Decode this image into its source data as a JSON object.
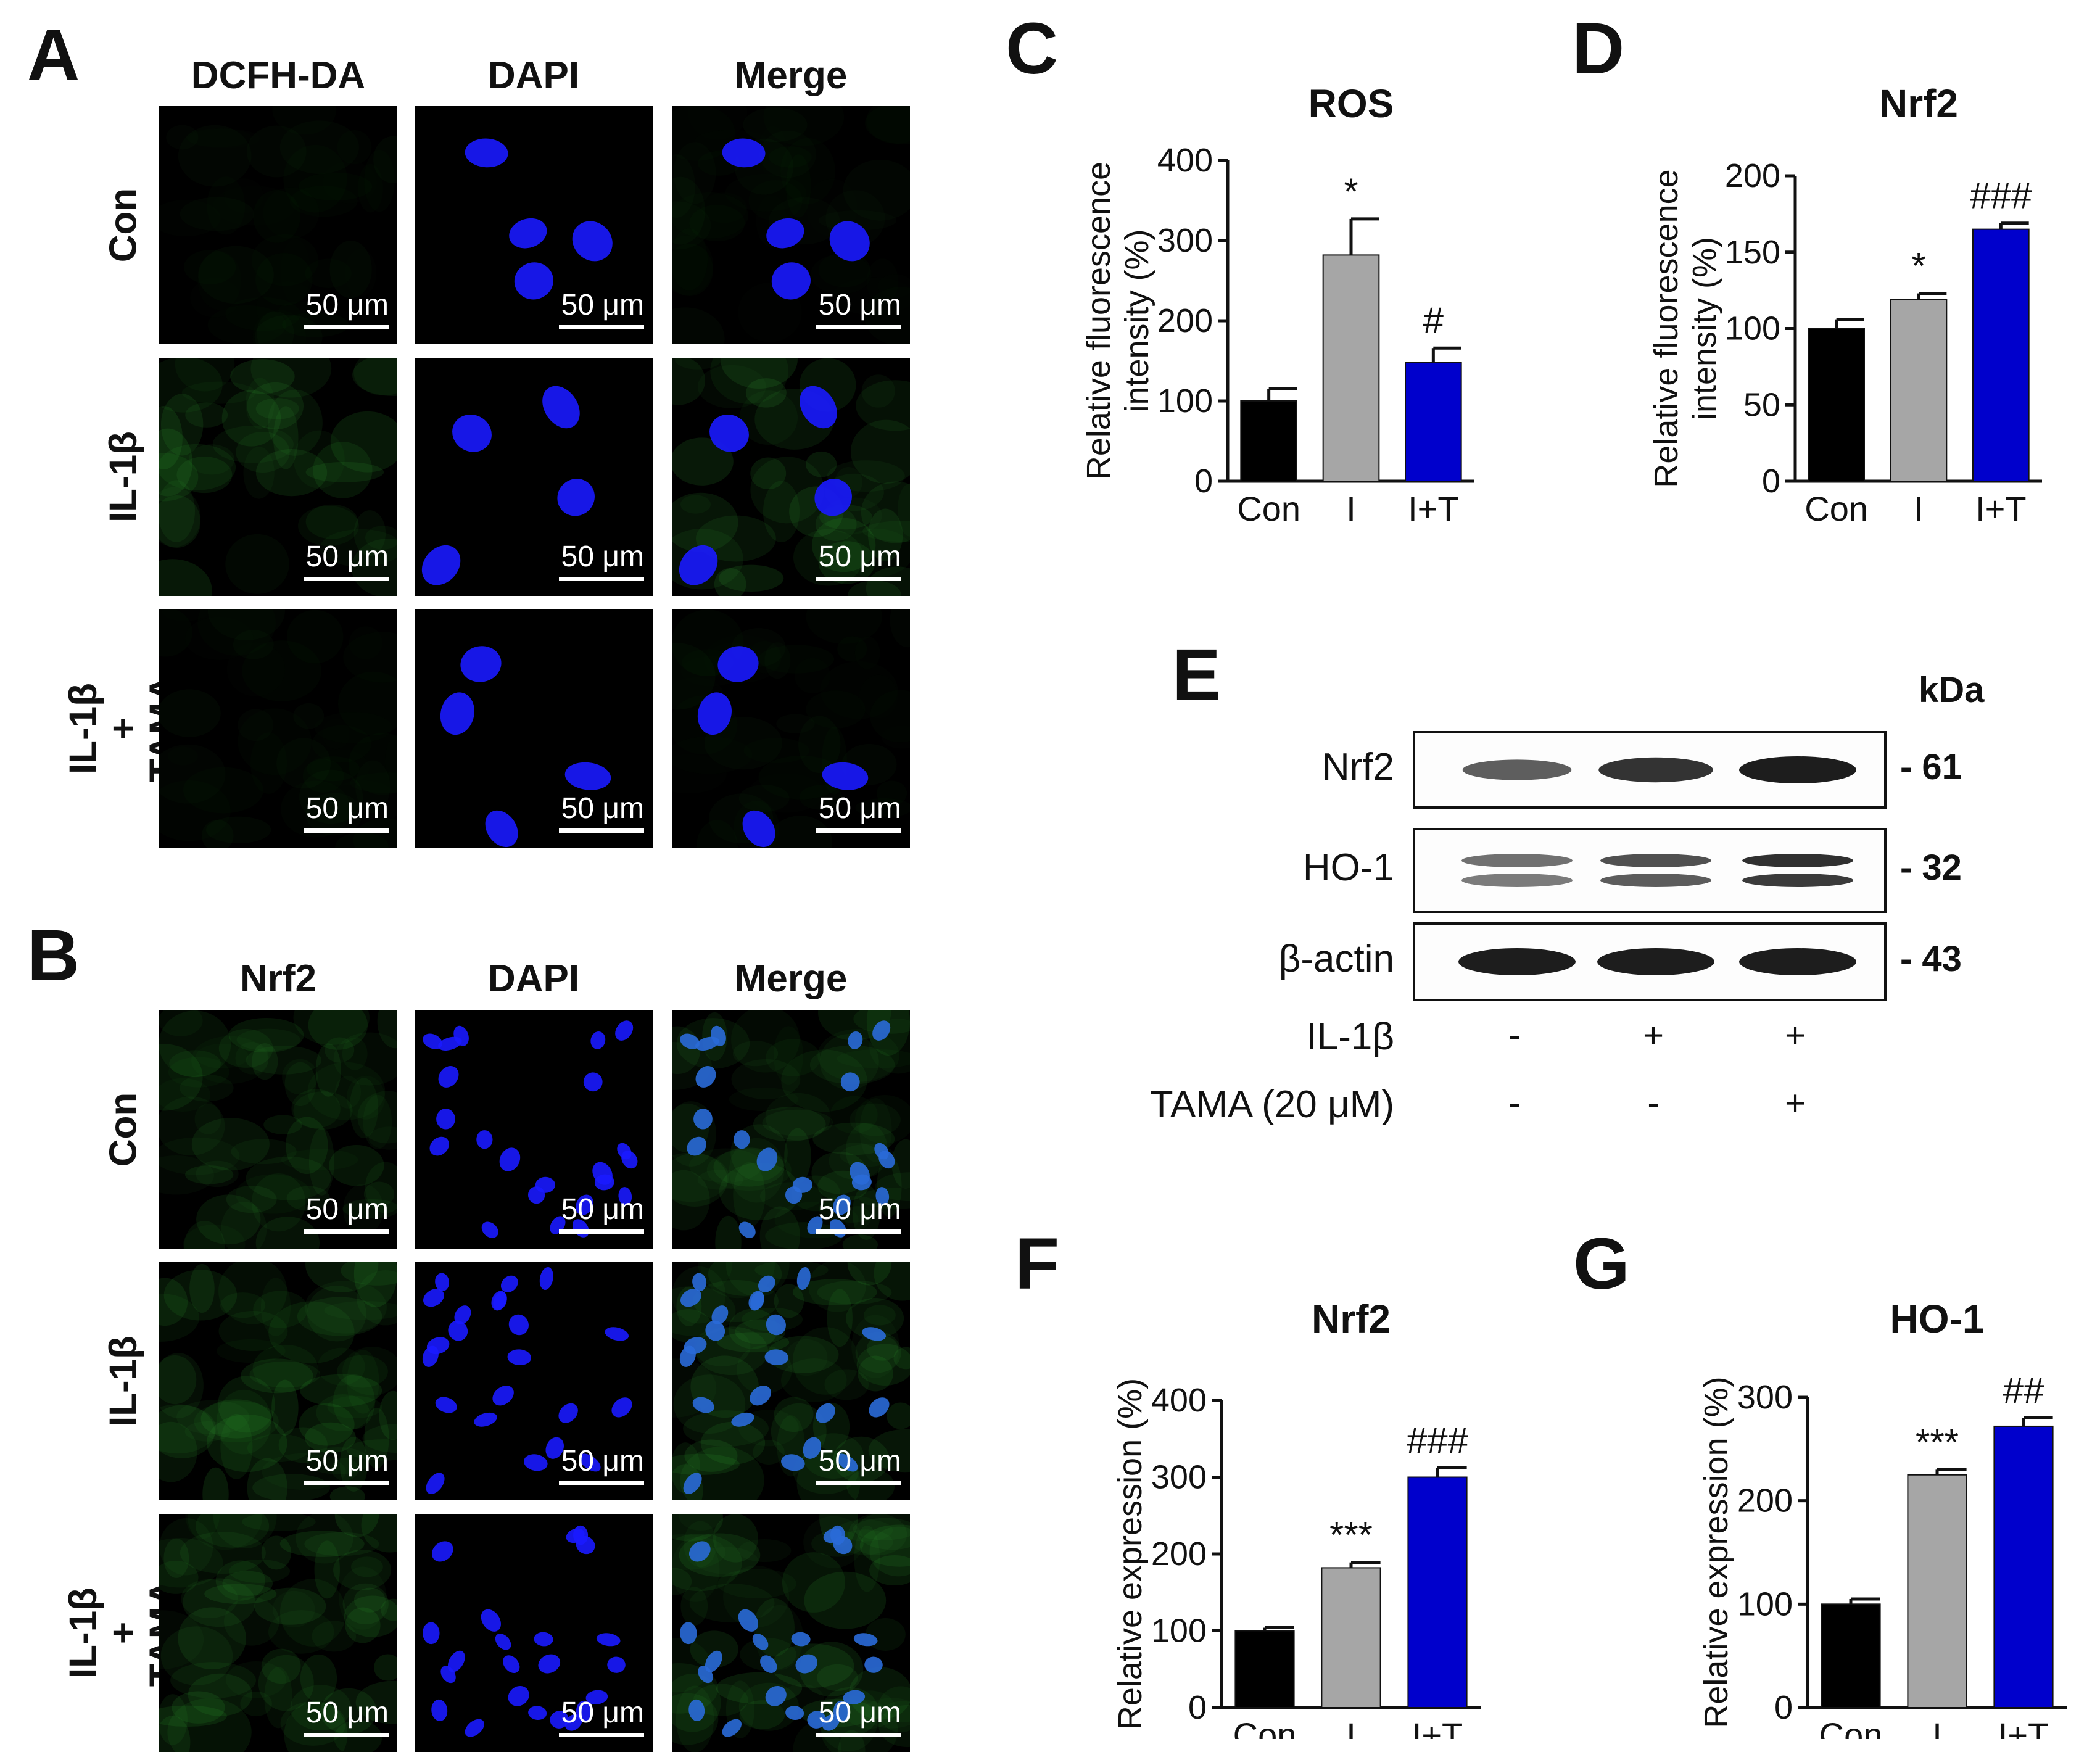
{
  "panels": {
    "A": "A",
    "B": "B",
    "C": "C",
    "D": "D",
    "E": "E",
    "F": "F",
    "G": "G"
  },
  "imaging": {
    "panelA": {
      "columns": [
        "DCFH-DA",
        "DAPI",
        "Merge"
      ],
      "rows": [
        {
          "label_lines": [
            "Con"
          ]
        },
        {
          "label_lines": [
            "IL-1β"
          ]
        },
        {
          "label_lines": [
            "IL-1β",
            "+",
            "TAMA"
          ]
        }
      ]
    },
    "panelB": {
      "columns": [
        "Nrf2",
        "DAPI",
        "Merge"
      ],
      "rows": [
        {
          "label_lines": [
            "Con"
          ]
        },
        {
          "label_lines": [
            "IL-1β"
          ]
        },
        {
          "label_lines": [
            "IL-1β",
            "+",
            "TAMA"
          ]
        }
      ]
    },
    "scale_bar_label": "50 μm",
    "colors": {
      "green_stain": "#2f9a2f",
      "blue_stain": "#1a1aff",
      "background": "#000000"
    }
  },
  "western": {
    "bands": [
      {
        "name": "Nrf2",
        "kda": "- 61",
        "intensity": [
          0.55,
          0.85,
          1.0
        ]
      },
      {
        "name": "HO-1",
        "kda": "- 32",
        "intensity": [
          0.45,
          0.7,
          0.95
        ]
      },
      {
        "name": "β-actin",
        "kda": "- 43",
        "intensity": [
          1.0,
          1.0,
          1.0
        ]
      }
    ],
    "kda_header": "kDa",
    "treatments": [
      {
        "name": "IL-1β",
        "signs": [
          "-",
          "+",
          "+"
        ]
      },
      {
        "name": "TAMA (20 μM)",
        "signs": [
          "-",
          "-",
          "+"
        ]
      }
    ]
  },
  "chart_data": [
    {
      "panel": "C",
      "type": "bar",
      "title": "ROS",
      "ylabel": [
        "Relative fluorescence",
        "intensity (%)"
      ],
      "categories": [
        "Con",
        "I",
        "I+T"
      ],
      "values": [
        100,
        282,
        148
      ],
      "errors": [
        15,
        45,
        18
      ],
      "annotations": [
        "",
        "*",
        "#"
      ],
      "ylim": [
        0,
        400
      ],
      "yticks": [
        0,
        100,
        200,
        300,
        400
      ],
      "colors": [
        "#000000",
        "#a6a6a6",
        "#0000cc"
      ]
    },
    {
      "panel": "D",
      "type": "bar",
      "title": "Nrf2",
      "ylabel": [
        "Relative fluorescence",
        "intensity (%)"
      ],
      "categories": [
        "Con",
        "I",
        "I+T"
      ],
      "values": [
        100,
        119,
        165
      ],
      "errors": [
        6,
        4,
        4
      ],
      "annotations": [
        "",
        "*",
        "###"
      ],
      "ylim": [
        0,
        200
      ],
      "yticks": [
        0,
        50,
        100,
        150,
        200
      ],
      "colors": [
        "#000000",
        "#a6a6a6",
        "#0000cc"
      ]
    },
    {
      "panel": "F",
      "type": "bar",
      "title": "Nrf2",
      "ylabel": [
        "Relative expression (%)"
      ],
      "categories": [
        "Con",
        "I",
        "I+T"
      ],
      "values": [
        100,
        182,
        300
      ],
      "errors": [
        4,
        7,
        12
      ],
      "annotations": [
        "",
        "***",
        "###"
      ],
      "ylim": [
        0,
        400
      ],
      "yticks": [
        0,
        100,
        200,
        300,
        400
      ],
      "colors": [
        "#000000",
        "#a6a6a6",
        "#0000cc"
      ]
    },
    {
      "panel": "G",
      "type": "bar",
      "title": "HO-1",
      "ylabel": [
        "Relative expression (%)"
      ],
      "categories": [
        "Con",
        "I",
        "I+T"
      ],
      "values": [
        100,
        225,
        272
      ],
      "errors": [
        5,
        5,
        8
      ],
      "annotations": [
        "",
        "***",
        "##"
      ],
      "ylim": [
        0,
        300
      ],
      "yticks": [
        0,
        100,
        200,
        300
      ],
      "colors": [
        "#000000",
        "#a6a6a6",
        "#0000cc"
      ]
    }
  ]
}
